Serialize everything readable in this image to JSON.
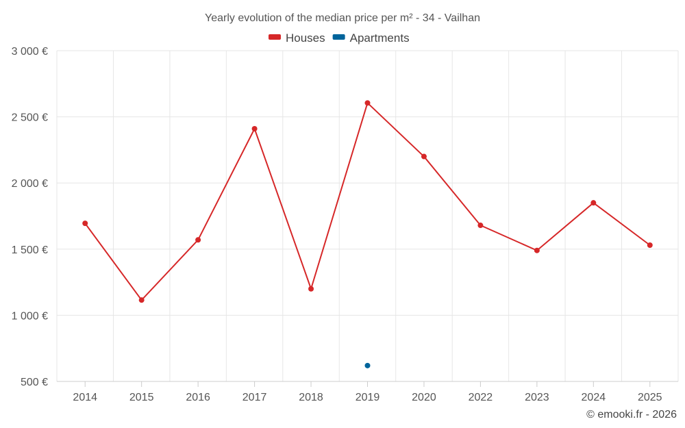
{
  "chart_data": {
    "type": "line",
    "title": "Yearly evolution of the median price per m² - 34 - Vailhan",
    "categories": [
      "2014",
      "2015",
      "2016",
      "2017",
      "2018",
      "2019",
      "2020",
      "2022",
      "2023",
      "2024",
      "2025"
    ],
    "series": [
      {
        "name": "Houses",
        "color": "#d62728",
        "values": [
          1695,
          1115,
          1570,
          2410,
          1200,
          2605,
          2200,
          1680,
          1490,
          1850,
          1530
        ]
      },
      {
        "name": "Apartments",
        "color": "#00649b",
        "values": [
          null,
          null,
          null,
          null,
          null,
          620,
          null,
          null,
          null,
          null,
          null
        ]
      }
    ],
    "ylim": [
      500,
      3000
    ],
    "yticks": [
      500,
      1000,
      1500,
      2000,
      2500,
      3000
    ],
    "ytick_labels": [
      "500 €",
      "1 000 €",
      "1 500 €",
      "2 000 €",
      "2 500 €",
      "3 000 €"
    ],
    "grid": true,
    "legend_position": "top-center"
  },
  "credit": "© emooki.fr - 2026"
}
